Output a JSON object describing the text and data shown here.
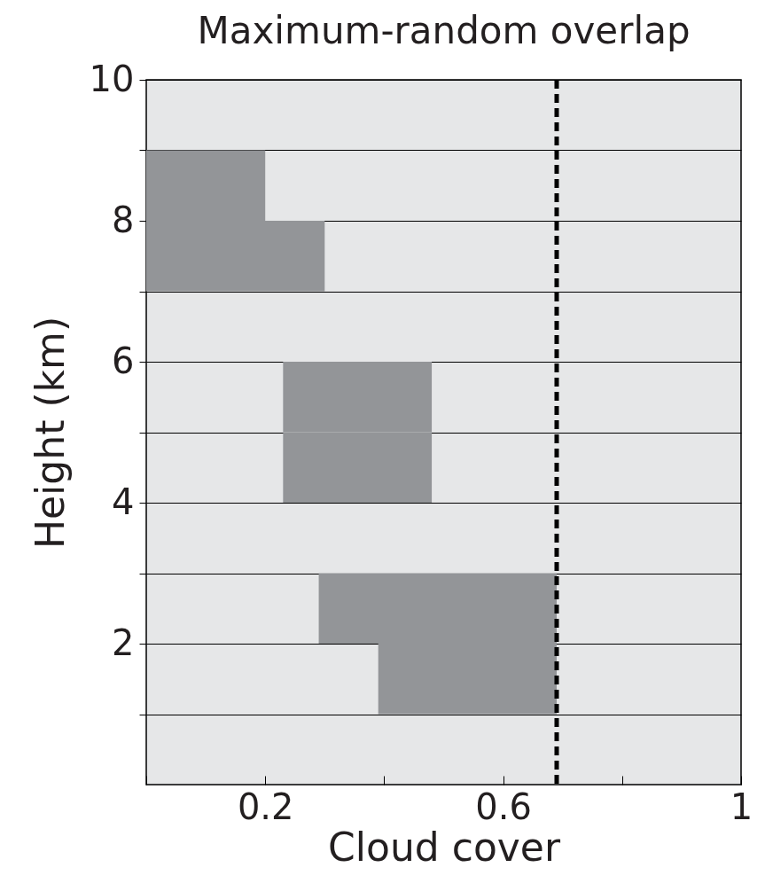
{
  "chart_data": {
    "type": "bar",
    "orientation": "horizontal",
    "title": "Maximum-random overlap",
    "xlabel": "Cloud cover",
    "ylabel": "Height (km)",
    "x": [
      8.5,
      7.5,
      5.5,
      4.5,
      2.5,
      1.5
    ],
    "base": [
      0,
      0,
      0.23,
      0.23,
      0.29,
      0.39
    ],
    "values": [
      0.2,
      0.3,
      0.25,
      0.25,
      0.4,
      0.3
    ],
    "color": "#939598",
    "xlim": [
      0,
      1
    ],
    "xticks": [
      {
        "value": 0,
        "label": null
      },
      0.2,
      {
        "value": 0.4,
        "label": null
      },
      0.6,
      {
        "value": 0.8,
        "label": null
      },
      1
    ],
    "ylim": [
      0,
      10
    ],
    "yticks": [
      {
        "value": 1,
        "label": null
      },
      2,
      {
        "value": 3,
        "label": null
      },
      4,
      {
        "value": 5,
        "label": null
      },
      6,
      {
        "value": 7,
        "label": null
      },
      8,
      {
        "value": 9,
        "label": null
      },
      10
    ],
    "grid": "y",
    "ref_lines": [
      {
        "axis": "x",
        "value": 0.69,
        "line_style": "dashed",
        "color": "#000000"
      }
    ]
  }
}
